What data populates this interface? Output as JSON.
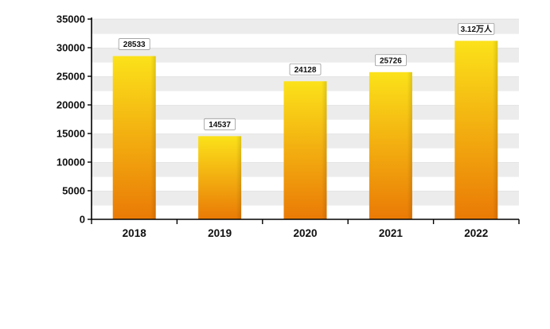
{
  "chart_data": {
    "type": "bar",
    "categories": [
      "2018",
      "2019",
      "2020",
      "2021",
      "2022"
    ],
    "values": [
      28533,
      14537,
      24128,
      25726,
      31200
    ],
    "data_labels": [
      "28533",
      "14537",
      "24128",
      "25726",
      "3.12万人"
    ],
    "y_ticks": [
      "0",
      "5000",
      "10000",
      "15000",
      "20000",
      "25000",
      "30000",
      "35000"
    ],
    "ylim": [
      0,
      35000
    ],
    "grid": "alternating horizontal bands",
    "colors": {
      "bar_top": "#fbe21a",
      "bar_bottom": "#ea7a06",
      "band_light": "#ececec",
      "band_white": "#ffffff",
      "axis": "#000000",
      "grid_line": "#cfcfcf"
    }
  }
}
